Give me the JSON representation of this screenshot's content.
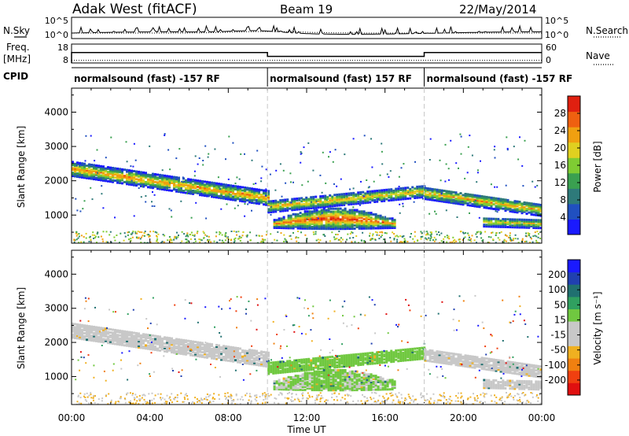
{
  "header": {
    "station": "Adak West (fitACF)",
    "beam": "Beam 19",
    "date": "22/May/2014"
  },
  "summary_labels": {
    "nsky": "N.Sky",
    "nsearch": "N.Search",
    "freq": "Freq.",
    "freq_unit": "[MHz]",
    "nave": "Nave",
    "cpid": "CPID",
    "noise_ticks": [
      "10^5",
      "10^0"
    ],
    "freq_ticks": [
      18,
      8
    ],
    "nave_ticks": [
      60,
      0
    ]
  },
  "cpid_segments": [
    {
      "label": "normalsound (fast) -157 RF",
      "start": 0,
      "end": 10
    },
    {
      "label": "normalsound (fast) 157 RF",
      "start": 10,
      "end": 18
    },
    {
      "label": "normalsound (fast) -157 RF",
      "start": 18,
      "end": 24
    }
  ],
  "x_axis": {
    "label": "Time UT",
    "ticks": [
      "00:00",
      "04:00",
      "08:00",
      "12:00",
      "16:00",
      "20:00",
      "00:00"
    ],
    "range": [
      0,
      24
    ]
  },
  "y_axis": {
    "label": "Slant Range [km]",
    "ticks": [
      1000,
      2000,
      3000,
      4000
    ],
    "range": [
      180,
      4700
    ]
  },
  "colorbars": {
    "power": {
      "label": "Power [dB]",
      "ticks": [
        "28",
        "24",
        "20",
        "16",
        "12",
        "8",
        "4"
      ],
      "colors": [
        "#1a1aff",
        "#2050c0",
        "#2e7a7a",
        "#3aa050",
        "#7fcc33",
        "#e0d020",
        "#f0a010",
        "#ef6010",
        "#e02010"
      ]
    },
    "velocity": {
      "label": "Velocity [m s⁻¹]",
      "ticks": [
        "200",
        "100",
        "50",
        "15",
        "-15",
        "-50",
        "-100",
        "-200"
      ],
      "colors": [
        "#e01010",
        "#f04010",
        "#f08010",
        "#f0b020",
        "#c8c8c8",
        "#c8c8c8",
        "#70c840",
        "#30a060",
        "#207070",
        "#2040b0",
        "#1a1aff"
      ]
    }
  },
  "chart_data": [
    {
      "type": "heatmap",
      "title": "Power [dB]",
      "xlabel": "Time UT",
      "ylabel": "Slant Range [km]",
      "xlim": [
        0,
        24
      ],
      "ylim": [
        180,
        4700
      ],
      "bands": [
        {
          "t_start": 0.0,
          "t_end": 10.0,
          "r_center_start": 2350,
          "r_center_end": 1500,
          "width": 420,
          "peak_db": 26
        },
        {
          "t_start": 10.0,
          "t_end": 18.0,
          "r_center_start": 1250,
          "r_center_end": 1700,
          "width": 340,
          "peak_db": 24
        },
        {
          "t_start": 10.3,
          "t_end": 16.5,
          "r_center_start": 800,
          "r_center_end": 800,
          "width": 600,
          "peak_db": 28
        },
        {
          "t_start": 18.0,
          "t_end": 24.0,
          "r_center_start": 1650,
          "r_center_end": 1150,
          "width": 360,
          "peak_db": 24
        },
        {
          "t_start": 21.0,
          "t_end": 24.0,
          "r_center_start": 800,
          "r_center_end": 750,
          "width": 260,
          "peak_db": 22
        }
      ]
    },
    {
      "type": "heatmap",
      "title": "Velocity [m s⁻¹]",
      "xlabel": "Time UT",
      "ylabel": "Slant Range [km]",
      "xlim": [
        0,
        24
      ],
      "ylim": [
        180,
        4700
      ],
      "bands": [
        {
          "t_start": 0.0,
          "t_end": 10.0,
          "r_center_start": 2350,
          "r_center_end": 1500,
          "width": 420,
          "velocity": 0
        },
        {
          "t_start": 10.0,
          "t_end": 18.0,
          "r_center_start": 1250,
          "r_center_end": 1700,
          "width": 340,
          "velocity": 40
        },
        {
          "t_start": 10.3,
          "t_end": 16.5,
          "r_center_start": 800,
          "r_center_end": 800,
          "width": 600,
          "velocity": 25
        },
        {
          "t_start": 18.0,
          "t_end": 24.0,
          "r_center_start": 1650,
          "r_center_end": 1150,
          "width": 360,
          "velocity": 0
        },
        {
          "t_start": 21.0,
          "t_end": 24.0,
          "r_center_start": 800,
          "r_center_end": 750,
          "width": 260,
          "velocity": -20
        }
      ]
    }
  ]
}
